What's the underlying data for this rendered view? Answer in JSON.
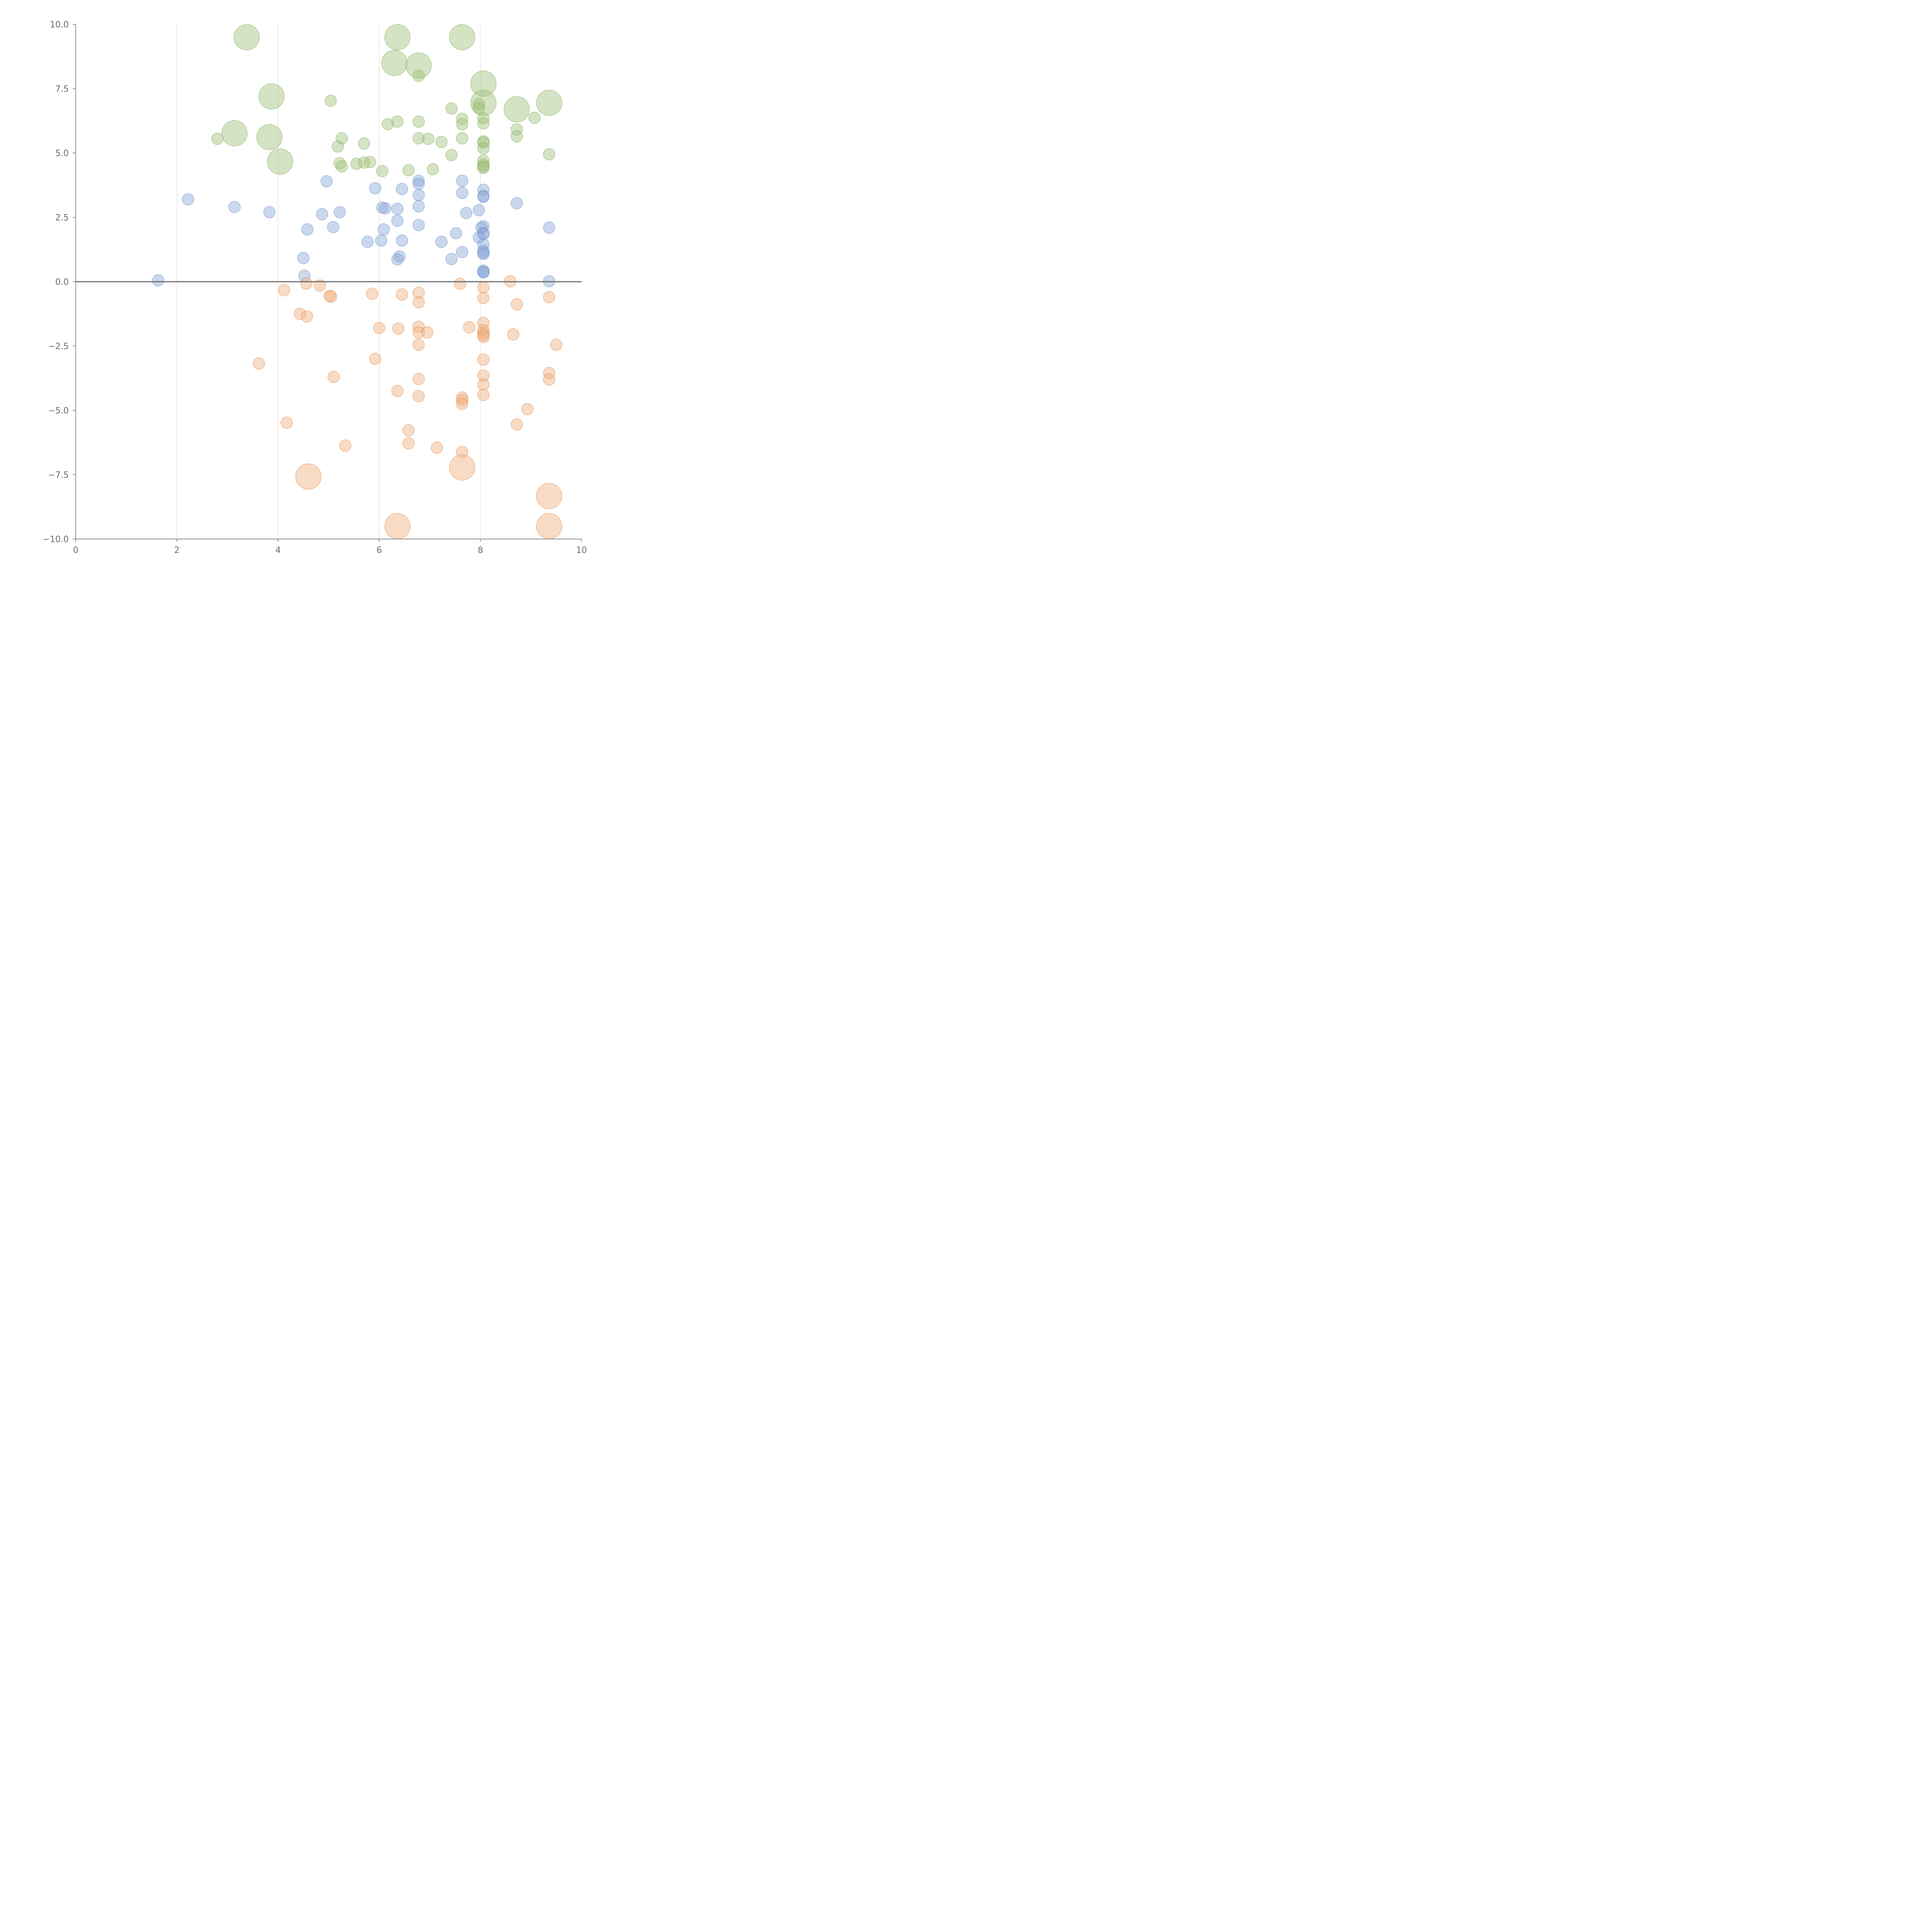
{
  "chart_data": {
    "type": "scatter",
    "title": "",
    "xlabel": "",
    "ylabel": "",
    "xlim": [
      0,
      10
    ],
    "ylim": [
      -10,
      10
    ],
    "grid": {
      "x": true,
      "y": false
    },
    "x_ticks": [
      "0",
      "2",
      "4",
      "6",
      "8",
      "10"
    ],
    "y_ticks": [
      "10.0",
      "7.5",
      "5.0",
      "2.5",
      "0.0",
      "−2.5",
      "−5.0",
      "−7.5",
      "−10.0"
    ],
    "x_tick_values": [
      0,
      2,
      4,
      6,
      8,
      10
    ],
    "y_tick_values": [
      10,
      7.5,
      5,
      2.5,
      0,
      -2.5,
      -5,
      -7.5,
      -10
    ],
    "zero_line": 0,
    "size_scale": {
      "large": 2,
      "small": 1
    },
    "series": [
      {
        "color": "#9fc17a",
        "stroke": "#86ad5b",
        "points": [
          [
            3.38,
            9.5,
            2
          ],
          [
            6.36,
            9.5,
            2
          ],
          [
            7.64,
            9.5,
            2
          ],
          [
            6.3,
            8.5,
            2
          ],
          [
            6.78,
            8.4,
            2
          ],
          [
            6.78,
            8.0,
            1
          ],
          [
            8.06,
            7.7,
            2
          ],
          [
            3.87,
            7.2,
            2
          ],
          [
            5.04,
            7.03,
            1
          ],
          [
            8.06,
            6.95,
            2
          ],
          [
            9.36,
            6.95,
            2
          ],
          [
            7.97,
            6.9,
            1
          ],
          [
            7.97,
            6.75,
            1
          ],
          [
            8.72,
            6.7,
            2
          ],
          [
            7.43,
            6.73,
            1
          ],
          [
            9.07,
            6.37,
            1
          ],
          [
            7.64,
            6.33,
            1
          ],
          [
            8.06,
            6.35,
            1
          ],
          [
            8.06,
            6.15,
            1
          ],
          [
            6.36,
            6.22,
            1
          ],
          [
            6.78,
            6.22,
            1
          ],
          [
            6.17,
            6.12,
            1
          ],
          [
            7.64,
            6.12,
            1
          ],
          [
            3.14,
            5.77,
            2
          ],
          [
            8.72,
            5.92,
            1
          ],
          [
            8.72,
            5.65,
            1
          ],
          [
            3.83,
            5.62,
            2
          ],
          [
            2.8,
            5.55,
            1
          ],
          [
            5.26,
            5.57,
            1
          ],
          [
            6.78,
            5.57,
            1
          ],
          [
            6.97,
            5.55,
            1
          ],
          [
            7.64,
            5.57,
            1
          ],
          [
            7.23,
            5.43,
            1
          ],
          [
            8.06,
            5.45,
            1
          ],
          [
            8.06,
            5.4,
            1
          ],
          [
            5.7,
            5.37,
            1
          ],
          [
            5.18,
            5.25,
            1
          ],
          [
            8.06,
            5.18,
            1
          ],
          [
            7.43,
            4.92,
            1
          ],
          [
            9.36,
            4.95,
            1
          ],
          [
            4.04,
            4.67,
            2
          ],
          [
            8.06,
            4.7,
            1
          ],
          [
            5.22,
            4.6,
            1
          ],
          [
            5.55,
            4.58,
            1
          ],
          [
            5.7,
            4.63,
            1
          ],
          [
            5.82,
            4.65,
            1
          ],
          [
            8.06,
            4.55,
            1
          ],
          [
            8.06,
            4.48,
            1
          ],
          [
            5.26,
            4.48,
            1
          ],
          [
            8.06,
            4.42,
            1
          ],
          [
            7.06,
            4.37,
            1
          ],
          [
            6.58,
            4.33,
            1
          ],
          [
            6.06,
            4.3,
            1
          ]
        ]
      },
      {
        "color": "#8aa9d8",
        "stroke": "#6c8fc9",
        "points": [
          [
            4.96,
            3.9,
            1
          ],
          [
            6.78,
            3.92,
            1
          ],
          [
            7.64,
            3.92,
            1
          ],
          [
            6.78,
            3.8,
            1
          ],
          [
            5.92,
            3.63,
            1
          ],
          [
            6.45,
            3.6,
            1
          ],
          [
            8.06,
            3.57,
            1
          ],
          [
            7.64,
            3.45,
            1
          ],
          [
            6.78,
            3.37,
            1
          ],
          [
            8.06,
            3.33,
            1
          ],
          [
            8.06,
            3.3,
            1
          ],
          [
            2.22,
            3.2,
            1
          ],
          [
            8.72,
            3.05,
            1
          ],
          [
            3.14,
            2.9,
            1
          ],
          [
            6.78,
            2.93,
            1
          ],
          [
            6.06,
            2.88,
            1
          ],
          [
            6.12,
            2.85,
            1
          ],
          [
            6.36,
            2.83,
            1
          ],
          [
            7.97,
            2.78,
            1
          ],
          [
            3.83,
            2.7,
            1
          ],
          [
            5.22,
            2.7,
            1
          ],
          [
            7.72,
            2.67,
            1
          ],
          [
            4.87,
            2.62,
            1
          ],
          [
            6.36,
            2.37,
            1
          ],
          [
            6.78,
            2.2,
            1
          ],
          [
            8.06,
            2.15,
            1
          ],
          [
            8.02,
            2.1,
            1
          ],
          [
            9.36,
            2.1,
            1
          ],
          [
            5.09,
            2.12,
            1
          ],
          [
            6.09,
            2.03,
            1
          ],
          [
            4.58,
            2.03,
            1
          ],
          [
            7.52,
            1.88,
            1
          ],
          [
            8.06,
            1.88,
            1
          ],
          [
            8.06,
            1.85,
            1
          ],
          [
            7.97,
            1.72,
            1
          ],
          [
            6.04,
            1.6,
            1
          ],
          [
            6.45,
            1.6,
            1
          ],
          [
            5.77,
            1.55,
            1
          ],
          [
            7.23,
            1.55,
            1
          ],
          [
            8.06,
            1.45,
            1
          ],
          [
            8.06,
            1.2,
            1
          ],
          [
            7.64,
            1.15,
            1
          ],
          [
            8.06,
            1.12,
            1
          ],
          [
            8.06,
            1.08,
            1
          ],
          [
            6.4,
            0.98,
            1
          ],
          [
            4.5,
            0.92,
            1
          ],
          [
            7.43,
            0.88,
            1
          ],
          [
            6.36,
            0.87,
            1
          ],
          [
            8.06,
            0.43,
            1
          ],
          [
            8.06,
            0.38,
            1
          ],
          [
            8.06,
            0.36,
            1
          ],
          [
            4.52,
            0.23,
            1
          ],
          [
            1.63,
            0.05,
            1
          ],
          [
            9.36,
            0.02,
            1
          ]
        ]
      },
      {
        "color": "#f0b07e",
        "stroke": "#e28e50",
        "points": [
          [
            8.59,
            0.02,
            1
          ],
          [
            7.6,
            -0.08,
            1
          ],
          [
            4.56,
            -0.07,
            1
          ],
          [
            4.83,
            -0.15,
            1
          ],
          [
            8.06,
            -0.22,
            1
          ],
          [
            4.12,
            -0.33,
            1
          ],
          [
            6.78,
            -0.43,
            1
          ],
          [
            5.86,
            -0.47,
            1
          ],
          [
            6.45,
            -0.5,
            1
          ],
          [
            5.02,
            -0.55,
            1
          ],
          [
            5.05,
            -0.58,
            1
          ],
          [
            9.36,
            -0.6,
            1
          ],
          [
            8.06,
            -0.63,
            1
          ],
          [
            6.78,
            -0.8,
            1
          ],
          [
            8.72,
            -0.88,
            1
          ],
          [
            4.43,
            -1.25,
            1
          ],
          [
            4.57,
            -1.35,
            1
          ],
          [
            8.06,
            -1.6,
            1
          ],
          [
            6.78,
            -1.75,
            1
          ],
          [
            7.78,
            -1.77,
            1
          ],
          [
            6.0,
            -1.8,
            1
          ],
          [
            6.38,
            -1.82,
            1
          ],
          [
            8.06,
            -1.88,
            1
          ],
          [
            6.78,
            -1.97,
            1
          ],
          [
            6.95,
            -1.97,
            1
          ],
          [
            8.06,
            -2.0,
            1
          ],
          [
            8.06,
            -2.08,
            1
          ],
          [
            8.06,
            -2.15,
            1
          ],
          [
            8.65,
            -2.05,
            1
          ],
          [
            6.78,
            -2.45,
            1
          ],
          [
            9.5,
            -2.45,
            1
          ],
          [
            5.92,
            -3.0,
            1
          ],
          [
            8.06,
            -3.03,
            1
          ],
          [
            3.62,
            -3.18,
            1
          ],
          [
            9.36,
            -3.55,
            1
          ],
          [
            8.06,
            -3.65,
            1
          ],
          [
            5.1,
            -3.7,
            1
          ],
          [
            6.78,
            -3.78,
            1
          ],
          [
            9.36,
            -3.8,
            1
          ],
          [
            8.06,
            -4.0,
            1
          ],
          [
            6.36,
            -4.25,
            1
          ],
          [
            8.06,
            -4.4,
            1
          ],
          [
            6.78,
            -4.45,
            1
          ],
          [
            7.64,
            -4.5,
            1
          ],
          [
            7.64,
            -4.6,
            1
          ],
          [
            7.64,
            -4.75,
            1
          ],
          [
            8.93,
            -4.95,
            1
          ],
          [
            4.17,
            -5.48,
            1
          ],
          [
            8.72,
            -5.55,
            1
          ],
          [
            6.58,
            -5.78,
            1
          ],
          [
            6.58,
            -6.28,
            1
          ],
          [
            5.33,
            -6.37,
            1
          ],
          [
            7.14,
            -6.45,
            1
          ],
          [
            7.64,
            -6.62,
            1
          ],
          [
            7.64,
            -7.22,
            2
          ],
          [
            4.6,
            -7.57,
            2
          ],
          [
            9.36,
            -8.33,
            2
          ],
          [
            6.36,
            -9.5,
            2
          ],
          [
            9.36,
            -9.5,
            2
          ]
        ]
      }
    ]
  }
}
